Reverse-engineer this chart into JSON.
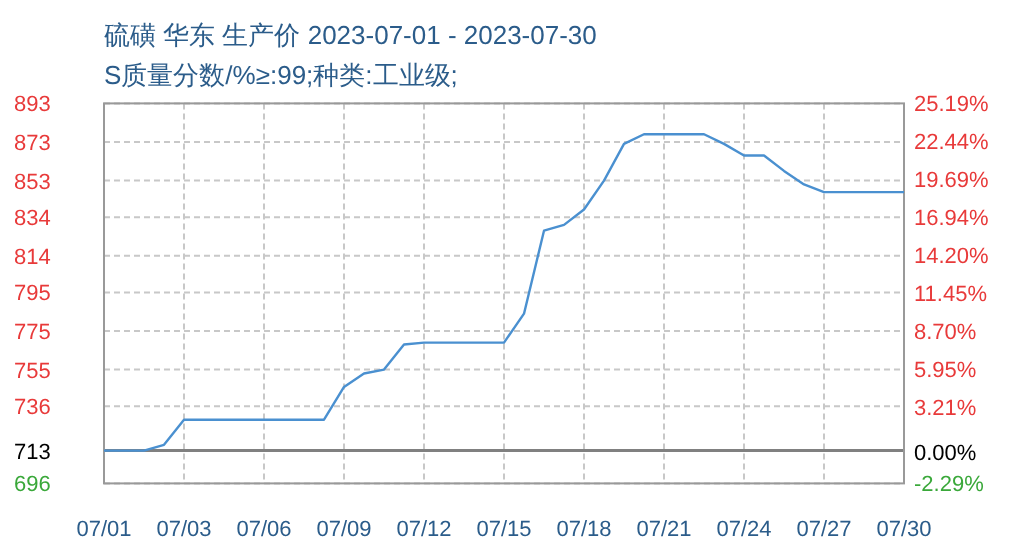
{
  "chart_data": {
    "type": "line",
    "title": "硫磺 华东 生产价 2023-07-01 - 2023-07-30",
    "subtitle": "S质量分数/%≥:99;种类:工业级;",
    "categories": [
      "07/01",
      null,
      null,
      null,
      "07/03",
      null,
      null,
      null,
      "07/06",
      null,
      null,
      null,
      "07/09",
      null,
      null,
      null,
      "07/12",
      null,
      null,
      null,
      "07/15",
      null,
      null,
      null,
      "07/18",
      null,
      null,
      null,
      "07/21",
      null,
      null,
      null,
      "07/24",
      null,
      null,
      null,
      "07/27",
      null,
      null,
      null,
      "07/30"
    ],
    "ylim": [
      696,
      893
    ],
    "yticks": [
      893,
      873,
      853,
      834,
      814,
      795,
      775,
      755,
      736,
      713,
      696
    ],
    "y2lim": [
      -2.29,
      25.19
    ],
    "y2ticks": [
      {
        "value": 25.19,
        "label": "25.19%"
      },
      {
        "value": 22.44,
        "label": "22.44%"
      },
      {
        "value": 19.69,
        "label": "19.69%"
      },
      {
        "value": 16.94,
        "label": "16.94%"
      },
      {
        "value": 14.2,
        "label": "14.20%"
      },
      {
        "value": 11.45,
        "label": "11.45%"
      },
      {
        "value": 8.7,
        "label": "8.70%"
      },
      {
        "value": 5.95,
        "label": "5.95%"
      },
      {
        "value": 3.21,
        "label": "3.21%"
      },
      {
        "value": 0,
        "label": "0.00%"
      },
      {
        "value": -2.29,
        "label": "-2.29%"
      }
    ],
    "grid": true,
    "line_style": "solid",
    "marker": "none",
    "ref_lines": [
      {
        "axis": "y",
        "value": 713,
        "color": "#808080",
        "line_style": "solid"
      }
    ],
    "series": [
      {
        "color": "#4a90d0",
        "values": [
          713,
          713,
          713,
          716,
          729,
          729,
          729,
          729,
          729,
          729,
          729,
          729,
          746,
          753,
          755,
          768,
          769,
          769,
          769,
          769,
          769,
          784,
          827,
          830,
          838,
          853,
          872,
          877,
          877,
          877,
          877,
          872,
          866,
          866,
          858,
          851,
          847,
          847,
          847,
          847,
          847
        ]
      }
    ]
  }
}
